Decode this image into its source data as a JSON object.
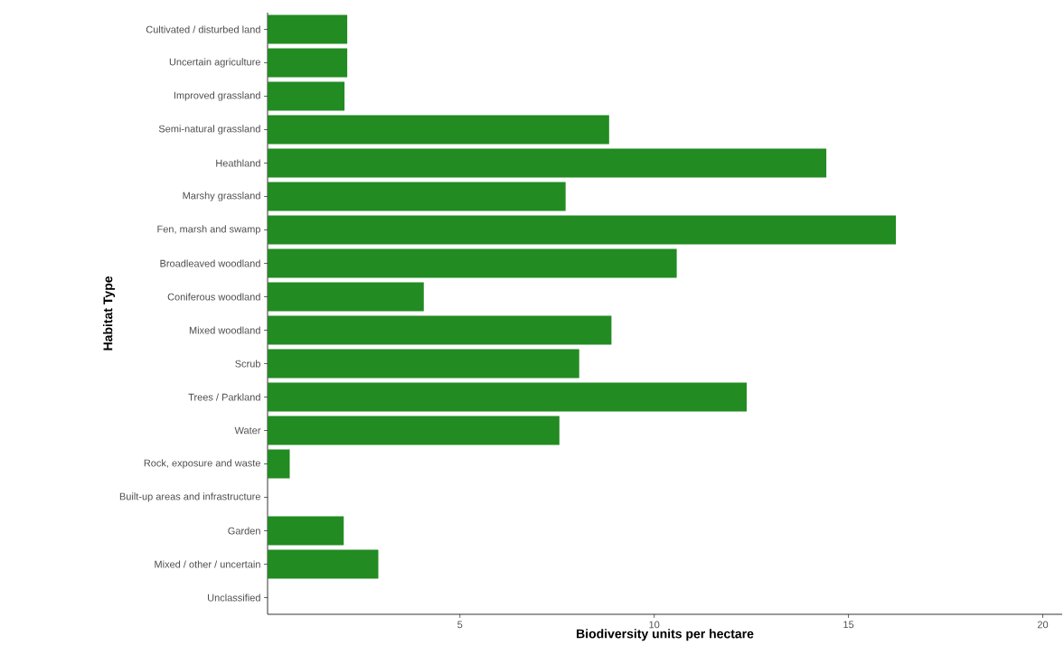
{
  "chart_data": {
    "type": "bar",
    "orientation": "horizontal",
    "xlabel": "Biodiversity units per hectare",
    "ylabel": "Habitat Type",
    "categories": [
      "Cultivated / disturbed land",
      "Uncertain agriculture",
      "Improved grassland",
      "Semi-natural grassland",
      "Heathland",
      "Marshy grassland",
      "Fen, marsh and swamp",
      "Broadleaved woodland",
      "Coniferous woodland",
      "Mixed woodland",
      "Scrub",
      "Trees / Parkland",
      "Water",
      "Rock, exposure and waste",
      "Built-up areas and infrastructure",
      "Garden",
      "Mixed / other / uncertain",
      "Unclassified"
    ],
    "values": [
      2.1,
      2.1,
      2.03,
      8.84,
      14.43,
      7.72,
      16.22,
      10.58,
      4.07,
      8.9,
      8.07,
      12.38,
      7.56,
      0.62,
      null,
      2.01,
      2.9,
      null
    ],
    "color": "#228b22",
    "xlim": [
      0.05,
      20.5
    ],
    "xticks": [
      5,
      10,
      15,
      20
    ],
    "grid": false
  }
}
